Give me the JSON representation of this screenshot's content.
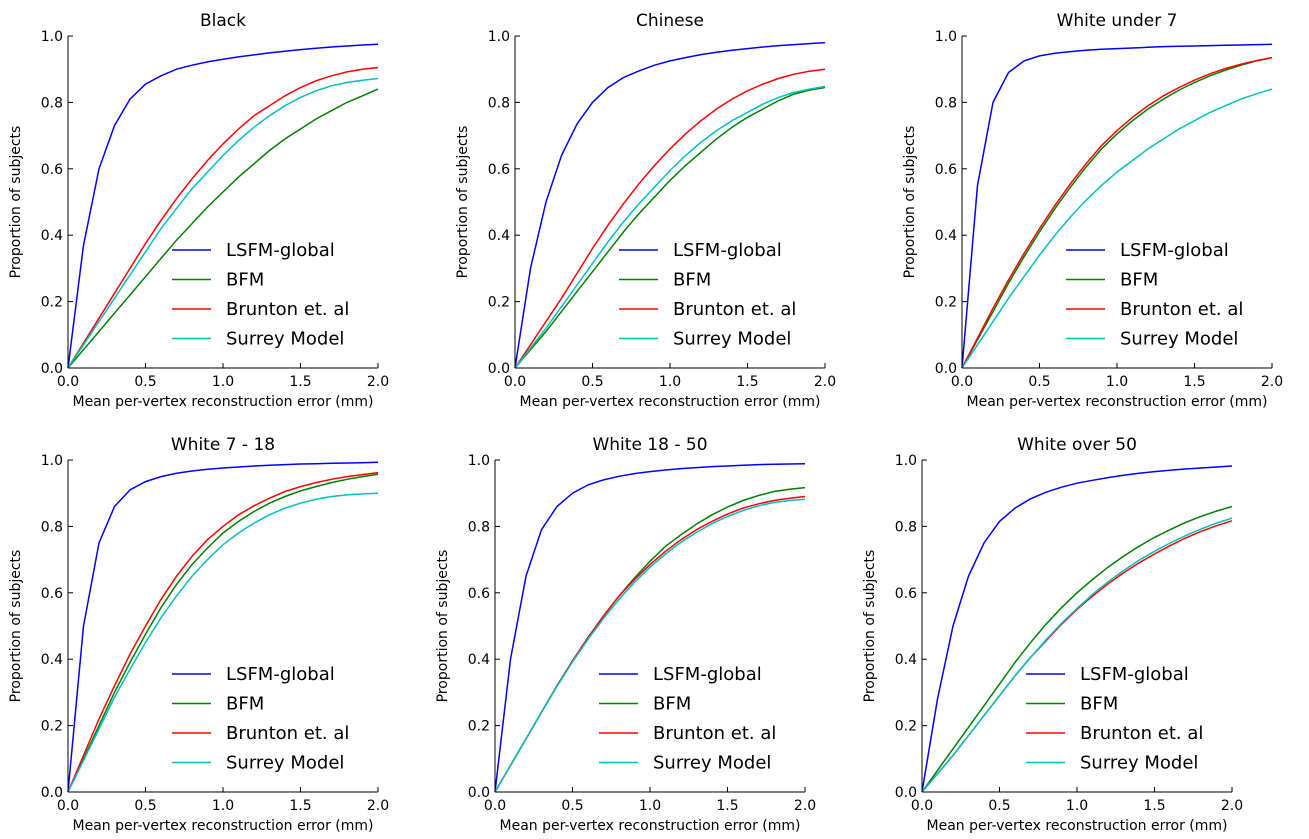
{
  "chart_data": [
    {
      "type": "line",
      "title": "Black",
      "xlabel": "Mean per-vertex reconstruction error (mm)",
      "ylabel": "Proportion of subjects",
      "xlim": [
        0,
        2.0
      ],
      "ylim": [
        0,
        1.0
      ],
      "xticks": [
        "0.0",
        "0.5",
        "1.0",
        "1.5",
        "2.0"
      ],
      "yticks": [
        "0.0",
        "0.2",
        "0.4",
        "0.6",
        "0.8",
        "1.0"
      ],
      "grid": false,
      "legend_position": "lower-right",
      "x": [
        0,
        0.1,
        0.2,
        0.3,
        0.4,
        0.5,
        0.6,
        0.7,
        0.8,
        0.9,
        1.0,
        1.1,
        1.2,
        1.3,
        1.4,
        1.5,
        1.6,
        1.7,
        1.8,
        1.9,
        2.0
      ],
      "series": [
        {
          "name": "LSFM-global",
          "color": "#0000ff",
          "values": [
            0,
            0.37,
            0.6,
            0.73,
            0.81,
            0.855,
            0.88,
            0.9,
            0.912,
            0.922,
            0.93,
            0.937,
            0.943,
            0.949,
            0.954,
            0.959,
            0.963,
            0.967,
            0.97,
            0.973,
            0.975
          ]
        },
        {
          "name": "BFM",
          "color": "#008000",
          "values": [
            0,
            0.055,
            0.11,
            0.165,
            0.22,
            0.275,
            0.33,
            0.385,
            0.435,
            0.485,
            0.53,
            0.575,
            0.615,
            0.655,
            0.69,
            0.72,
            0.75,
            0.775,
            0.8,
            0.82,
            0.84
          ]
        },
        {
          "name": "Brunton et. al",
          "color": "#ff0000",
          "values": [
            0,
            0.075,
            0.15,
            0.225,
            0.3,
            0.375,
            0.445,
            0.51,
            0.57,
            0.625,
            0.675,
            0.72,
            0.76,
            0.79,
            0.82,
            0.845,
            0.865,
            0.88,
            0.892,
            0.9,
            0.905
          ]
        },
        {
          "name": "Surrey Model",
          "color": "#00bfbf",
          "values": [
            0,
            0.07,
            0.14,
            0.21,
            0.28,
            0.35,
            0.42,
            0.48,
            0.54,
            0.59,
            0.64,
            0.685,
            0.725,
            0.76,
            0.79,
            0.815,
            0.835,
            0.85,
            0.86,
            0.867,
            0.872
          ]
        }
      ]
    },
    {
      "type": "line",
      "title": "Chinese",
      "xlabel": "Mean per-vertex reconstruction error (mm)",
      "ylabel": "Proportion of subjects",
      "xlim": [
        0,
        2.0
      ],
      "ylim": [
        0,
        1.0
      ],
      "xticks": [
        "0.0",
        "0.5",
        "1.0",
        "1.5",
        "2.0"
      ],
      "yticks": [
        "0.0",
        "0.2",
        "0.4",
        "0.6",
        "0.8",
        "1.0"
      ],
      "grid": false,
      "legend_position": "lower-right",
      "x": [
        0,
        0.1,
        0.2,
        0.3,
        0.4,
        0.5,
        0.6,
        0.7,
        0.8,
        0.9,
        1.0,
        1.1,
        1.2,
        1.3,
        1.4,
        1.5,
        1.6,
        1.7,
        1.8,
        1.9,
        2.0
      ],
      "series": [
        {
          "name": "LSFM-global",
          "color": "#0000ff",
          "values": [
            0,
            0.3,
            0.5,
            0.64,
            0.735,
            0.8,
            0.845,
            0.875,
            0.895,
            0.912,
            0.925,
            0.935,
            0.944,
            0.951,
            0.957,
            0.962,
            0.967,
            0.971,
            0.974,
            0.977,
            0.98
          ]
        },
        {
          "name": "BFM",
          "color": "#008000",
          "values": [
            0,
            0.055,
            0.11,
            0.17,
            0.23,
            0.29,
            0.35,
            0.41,
            0.465,
            0.515,
            0.565,
            0.61,
            0.65,
            0.69,
            0.725,
            0.755,
            0.78,
            0.805,
            0.825,
            0.837,
            0.845
          ]
        },
        {
          "name": "Brunton et. al",
          "color": "#ff0000",
          "values": [
            0,
            0.07,
            0.14,
            0.21,
            0.285,
            0.36,
            0.43,
            0.495,
            0.555,
            0.61,
            0.66,
            0.705,
            0.745,
            0.78,
            0.81,
            0.835,
            0.855,
            0.872,
            0.885,
            0.894,
            0.9
          ]
        },
        {
          "name": "Surrey Model",
          "color": "#00bfbf",
          "values": [
            0,
            0.06,
            0.12,
            0.185,
            0.25,
            0.315,
            0.38,
            0.44,
            0.495,
            0.545,
            0.595,
            0.64,
            0.68,
            0.715,
            0.745,
            0.77,
            0.795,
            0.815,
            0.83,
            0.84,
            0.848
          ]
        }
      ]
    },
    {
      "type": "line",
      "title": "White under 7",
      "xlabel": "Mean per-vertex reconstruction error (mm)",
      "ylabel": "Proportion of subjects",
      "xlim": [
        0,
        2.0
      ],
      "ylim": [
        0,
        1.0
      ],
      "xticks": [
        "0.0",
        "0.5",
        "1.0",
        "1.5",
        "2.0"
      ],
      "yticks": [
        "0.0",
        "0.2",
        "0.4",
        "0.6",
        "0.8",
        "1.0"
      ],
      "grid": false,
      "legend_position": "lower-right",
      "x": [
        0,
        0.1,
        0.2,
        0.3,
        0.4,
        0.5,
        0.6,
        0.7,
        0.8,
        0.9,
        1.0,
        1.1,
        1.2,
        1.3,
        1.4,
        1.5,
        1.6,
        1.7,
        1.8,
        1.9,
        2.0
      ],
      "series": [
        {
          "name": "LSFM-global",
          "color": "#0000ff",
          "values": [
            0,
            0.55,
            0.8,
            0.89,
            0.925,
            0.94,
            0.948,
            0.953,
            0.957,
            0.96,
            0.962,
            0.964,
            0.966,
            0.968,
            0.969,
            0.97,
            0.971,
            0.972,
            0.973,
            0.974,
            0.975
          ]
        },
        {
          "name": "BFM",
          "color": "#008000",
          "values": [
            0,
            0.085,
            0.17,
            0.255,
            0.335,
            0.41,
            0.48,
            0.545,
            0.605,
            0.66,
            0.705,
            0.745,
            0.78,
            0.81,
            0.837,
            0.86,
            0.88,
            0.897,
            0.912,
            0.925,
            0.935
          ]
        },
        {
          "name": "Brunton et. al",
          "color": "#ff0000",
          "values": [
            0,
            0.09,
            0.18,
            0.265,
            0.345,
            0.42,
            0.49,
            0.555,
            0.615,
            0.67,
            0.715,
            0.755,
            0.79,
            0.82,
            0.845,
            0.867,
            0.886,
            0.902,
            0.915,
            0.926,
            0.935
          ]
        },
        {
          "name": "Surrey Model",
          "color": "#00bfbf",
          "values": [
            0,
            0.07,
            0.14,
            0.21,
            0.275,
            0.34,
            0.4,
            0.455,
            0.505,
            0.55,
            0.59,
            0.625,
            0.66,
            0.69,
            0.72,
            0.745,
            0.77,
            0.79,
            0.81,
            0.826,
            0.84
          ]
        }
      ]
    },
    {
      "type": "line",
      "title": "White 7 - 18",
      "xlabel": "Mean per-vertex reconstruction error (mm)",
      "ylabel": "Proportion of subjects",
      "xlim": [
        0,
        2.0
      ],
      "ylim": [
        0,
        1.0
      ],
      "xticks": [
        "0.0",
        "0.5",
        "1.0",
        "1.5",
        "2.0"
      ],
      "yticks": [
        "0.0",
        "0.2",
        "0.4",
        "0.6",
        "0.8",
        "1.0"
      ],
      "grid": false,
      "legend_position": "lower-right",
      "x": [
        0,
        0.1,
        0.2,
        0.3,
        0.4,
        0.5,
        0.6,
        0.7,
        0.8,
        0.9,
        1.0,
        1.1,
        1.2,
        1.3,
        1.4,
        1.5,
        1.6,
        1.7,
        1.8,
        1.9,
        2.0
      ],
      "series": [
        {
          "name": "LSFM-global",
          "color": "#0000ff",
          "values": [
            0,
            0.5,
            0.75,
            0.86,
            0.91,
            0.935,
            0.95,
            0.96,
            0.967,
            0.972,
            0.976,
            0.979,
            0.982,
            0.984,
            0.986,
            0.988,
            0.989,
            0.99,
            0.991,
            0.992,
            0.993
          ]
        },
        {
          "name": "BFM",
          "color": "#008000",
          "values": [
            0,
            0.1,
            0.2,
            0.3,
            0.39,
            0.475,
            0.555,
            0.625,
            0.685,
            0.735,
            0.78,
            0.815,
            0.845,
            0.87,
            0.89,
            0.907,
            0.92,
            0.932,
            0.942,
            0.95,
            0.957
          ]
        },
        {
          "name": "Brunton et. al",
          "color": "#ff0000",
          "values": [
            0,
            0.11,
            0.22,
            0.32,
            0.415,
            0.5,
            0.58,
            0.65,
            0.71,
            0.76,
            0.8,
            0.835,
            0.862,
            0.885,
            0.905,
            0.92,
            0.932,
            0.942,
            0.95,
            0.956,
            0.962
          ]
        },
        {
          "name": "Surrey Model",
          "color": "#00bfbf",
          "values": [
            0,
            0.095,
            0.19,
            0.285,
            0.37,
            0.45,
            0.525,
            0.59,
            0.65,
            0.7,
            0.745,
            0.78,
            0.81,
            0.835,
            0.855,
            0.87,
            0.882,
            0.89,
            0.895,
            0.898,
            0.9
          ]
        }
      ]
    },
    {
      "type": "line",
      "title": "White 18 - 50",
      "xlabel": "Mean per-vertex reconstruction error (mm)",
      "ylabel": "Proportion of subjects",
      "xlim": [
        0,
        2.0
      ],
      "ylim": [
        0,
        1.0
      ],
      "xticks": [
        "0.0",
        "0.5",
        "1.0",
        "1.5",
        "2.0"
      ],
      "yticks": [
        "0.0",
        "0.2",
        "0.4",
        "0.6",
        "0.8",
        "1.0"
      ],
      "grid": false,
      "legend_position": "lower-right",
      "x": [
        0,
        0.1,
        0.2,
        0.3,
        0.4,
        0.5,
        0.6,
        0.7,
        0.8,
        0.9,
        1.0,
        1.1,
        1.2,
        1.3,
        1.4,
        1.5,
        1.6,
        1.7,
        1.8,
        1.9,
        2.0
      ],
      "series": [
        {
          "name": "LSFM-global",
          "color": "#0000ff",
          "values": [
            0,
            0.4,
            0.65,
            0.79,
            0.86,
            0.9,
            0.925,
            0.94,
            0.951,
            0.959,
            0.965,
            0.97,
            0.974,
            0.977,
            0.98,
            0.982,
            0.984,
            0.986,
            0.987,
            0.988,
            0.989
          ]
        },
        {
          "name": "BFM",
          "color": "#008000",
          "values": [
            0,
            0.08,
            0.16,
            0.24,
            0.32,
            0.395,
            0.465,
            0.53,
            0.59,
            0.645,
            0.695,
            0.74,
            0.775,
            0.807,
            0.835,
            0.858,
            0.878,
            0.893,
            0.905,
            0.912,
            0.917
          ]
        },
        {
          "name": "Brunton et. al",
          "color": "#ff0000",
          "values": [
            0,
            0.08,
            0.16,
            0.24,
            0.32,
            0.395,
            0.465,
            0.53,
            0.59,
            0.64,
            0.685,
            0.725,
            0.76,
            0.79,
            0.815,
            0.837,
            0.855,
            0.868,
            0.878,
            0.885,
            0.89
          ]
        },
        {
          "name": "Surrey Model",
          "color": "#00bfbf",
          "values": [
            0,
            0.08,
            0.16,
            0.24,
            0.318,
            0.392,
            0.46,
            0.523,
            0.58,
            0.632,
            0.677,
            0.717,
            0.752,
            0.782,
            0.808,
            0.83,
            0.848,
            0.862,
            0.872,
            0.878,
            0.882
          ]
        }
      ]
    },
    {
      "type": "line",
      "title": "White over 50",
      "xlabel": "Mean per-vertex reconstruction error (mm)",
      "ylabel": "Proportion of subjects",
      "xlim": [
        0,
        2.0
      ],
      "ylim": [
        0,
        1.0
      ],
      "xticks": [
        "0.0",
        "0.5",
        "1.0",
        "1.5",
        "2.0"
      ],
      "yticks": [
        "0.0",
        "0.2",
        "0.4",
        "0.6",
        "0.8",
        "1.0"
      ],
      "grid": false,
      "legend_position": "lower-right",
      "x": [
        0,
        0.1,
        0.2,
        0.3,
        0.4,
        0.5,
        0.6,
        0.7,
        0.8,
        0.9,
        1.0,
        1.1,
        1.2,
        1.3,
        1.4,
        1.5,
        1.6,
        1.7,
        1.8,
        1.9,
        2.0
      ],
      "series": [
        {
          "name": "LSFM-global",
          "color": "#0000ff",
          "values": [
            0,
            0.28,
            0.5,
            0.65,
            0.75,
            0.815,
            0.855,
            0.883,
            0.903,
            0.918,
            0.93,
            0.939,
            0.947,
            0.954,
            0.96,
            0.965,
            0.969,
            0.973,
            0.976,
            0.979,
            0.982
          ]
        },
        {
          "name": "BFM",
          "color": "#008000",
          "values": [
            0,
            0.065,
            0.13,
            0.195,
            0.26,
            0.325,
            0.39,
            0.45,
            0.505,
            0.555,
            0.6,
            0.64,
            0.677,
            0.71,
            0.74,
            0.767,
            0.79,
            0.812,
            0.83,
            0.846,
            0.86
          ]
        },
        {
          "name": "Brunton et. al",
          "color": "#ff0000",
          "values": [
            0,
            0.055,
            0.11,
            0.17,
            0.23,
            0.29,
            0.35,
            0.405,
            0.455,
            0.505,
            0.55,
            0.59,
            0.627,
            0.66,
            0.69,
            0.717,
            0.742,
            0.765,
            0.785,
            0.802,
            0.817
          ]
        },
        {
          "name": "Surrey Model",
          "color": "#00bfbf",
          "values": [
            0,
            0.055,
            0.11,
            0.17,
            0.23,
            0.29,
            0.35,
            0.405,
            0.458,
            0.508,
            0.553,
            0.595,
            0.633,
            0.667,
            0.698,
            0.725,
            0.75,
            0.772,
            0.792,
            0.81,
            0.825
          ]
        }
      ]
    }
  ]
}
